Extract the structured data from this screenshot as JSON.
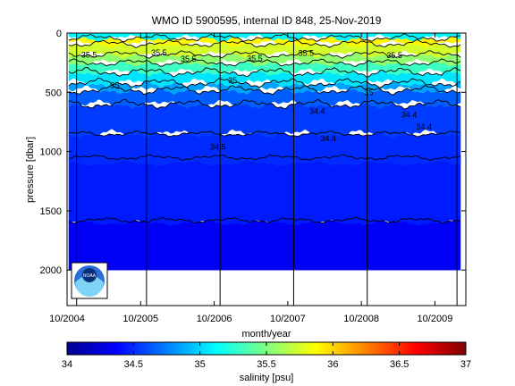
{
  "chart_data": {
    "type": "heatmap",
    "title": "WMO ID 5900595, internal ID 848, 25-Nov-2019",
    "xlabel": "month/year",
    "ylabel": "pressure [dbar]",
    "colorbar_label": "salinity [psu]",
    "x_ticks": [
      "10/2004",
      "10/2005",
      "10/2006",
      "10/2007",
      "10/2008",
      "10/2009"
    ],
    "x_tick_values": [
      2004.75,
      2005.75,
      2006.75,
      2007.75,
      2008.75,
      2009.75
    ],
    "xlim": [
      2004.75,
      2010.17
    ],
    "y_ticks": [
      0,
      500,
      1000,
      1500,
      2000
    ],
    "ylim": [
      0,
      2300
    ],
    "y_reversed": true,
    "colorbar_ticks": [
      34,
      34.5,
      35,
      35.5,
      36,
      36.5,
      37
    ],
    "clim": [
      34,
      37
    ],
    "colormap": "jet",
    "profile_lines_x": [
      2004.88,
      2005.83,
      2006.83,
      2007.83,
      2008.83,
      2010.05
    ],
    "layers": [
      {
        "salinity": 34.35,
        "top_depth": 1580,
        "bottom_depth": 2000
      },
      {
        "salinity": 34.45,
        "top_depth": 1050,
        "bottom_depth": 1600
      },
      {
        "salinity": 34.5,
        "top_depth": 850,
        "bottom_depth": 1100
      },
      {
        "salinity": 34.55,
        "top_depth": 600,
        "bottom_depth": 850
      },
      {
        "salinity": 34.65,
        "top_depth": 480,
        "bottom_depth": 600
      },
      {
        "salinity": 34.85,
        "top_depth": 420,
        "bottom_depth": 480
      },
      {
        "salinity": 35.05,
        "top_depth": 330,
        "bottom_depth": 420
      },
      {
        "salinity": 35.3,
        "top_depth": 250,
        "bottom_depth": 330
      },
      {
        "salinity": 35.55,
        "top_depth": 180,
        "bottom_depth": 250
      },
      {
        "salinity": 35.75,
        "top_depth": 90,
        "bottom_depth": 180
      },
      {
        "salinity": 35.9,
        "top_depth": 40,
        "bottom_depth": 90
      },
      {
        "salinity": 35.1,
        "top_depth": 0,
        "bottom_depth": 40
      }
    ],
    "contour_labels": [
      {
        "text": "35.5",
        "x": 2005.05,
        "y": 185
      },
      {
        "text": "35.5",
        "x": 2006.0,
        "y": 165
      },
      {
        "text": "35.5",
        "x": 2006.4,
        "y": 220
      },
      {
        "text": "35.5",
        "x": 2007.3,
        "y": 215
      },
      {
        "text": "35.5",
        "x": 2008.0,
        "y": 170
      },
      {
        "text": "35.5",
        "x": 2009.2,
        "y": 190
      },
      {
        "text": "35",
        "x": 2005.4,
        "y": 440
      },
      {
        "text": "35",
        "x": 2007.0,
        "y": 400
      },
      {
        "text": "35",
        "x": 2008.85,
        "y": 500
      },
      {
        "text": "34.4",
        "x": 2008.15,
        "y": 660
      },
      {
        "text": "34.4",
        "x": 2009.4,
        "y": 690
      },
      {
        "text": "34.4",
        "x": 2008.3,
        "y": 890
      },
      {
        "text": "34.4",
        "x": 2009.6,
        "y": 790
      },
      {
        "text": "34.5",
        "x": 2006.8,
        "y": 960
      }
    ]
  },
  "logo": {
    "text": "NOAA",
    "icon": "noaa-logo-icon"
  }
}
